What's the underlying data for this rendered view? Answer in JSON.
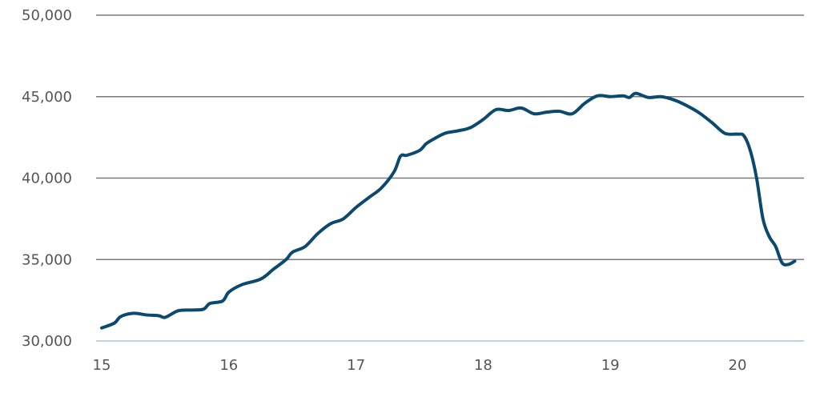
{
  "chart_data": {
    "type": "line",
    "title": "",
    "xlabel": "",
    "ylabel": "",
    "xlim": [
      15,
      20.5
    ],
    "ylim": [
      30000,
      50000
    ],
    "x_ticks": [
      15,
      16,
      17,
      18,
      19,
      20
    ],
    "x_tick_labels": [
      "15",
      "16",
      "17",
      "18",
      "19",
      "20"
    ],
    "y_ticks": [
      30000,
      35000,
      40000,
      45000,
      50000
    ],
    "y_tick_labels": [
      "30,000",
      "35,000",
      "40,000",
      "45,000",
      "50,000"
    ],
    "grid": "horizontal",
    "legend": "none",
    "colors": {
      "line": "#0b4a6e",
      "grid": "#7a7a7a",
      "baseline": "#a9c4dd",
      "text": "#555555"
    },
    "series": [
      {
        "x": [
          15.0,
          15.1,
          15.15,
          15.25,
          15.35,
          15.45,
          15.5,
          15.6,
          15.7,
          15.8,
          15.85,
          15.95,
          16.0,
          16.1,
          16.25,
          16.35,
          16.45,
          16.5,
          16.6,
          16.7,
          16.8,
          16.9,
          17.0,
          17.1,
          17.2,
          17.3,
          17.35,
          17.4,
          17.5,
          17.55,
          17.6,
          17.7,
          17.8,
          17.9,
          18.0,
          18.1,
          18.2,
          18.3,
          18.4,
          18.5,
          18.6,
          18.7,
          18.8,
          18.9,
          19.0,
          19.1,
          19.15,
          19.2,
          19.3,
          19.4,
          19.5,
          19.6,
          19.7,
          19.8,
          19.9,
          20.0,
          20.05,
          20.1,
          20.15,
          20.2,
          20.25,
          20.3,
          20.35,
          20.4,
          20.45
        ],
        "y": [
          30800,
          31100,
          31500,
          31700,
          31600,
          31550,
          31450,
          31850,
          31900,
          31950,
          32300,
          32450,
          33000,
          33450,
          33800,
          34400,
          35000,
          35450,
          35800,
          36600,
          37200,
          37500,
          38200,
          38800,
          39400,
          40400,
          41350,
          41400,
          41700,
          42100,
          42350,
          42750,
          42900,
          43100,
          43600,
          44200,
          44150,
          44300,
          43950,
          44050,
          44100,
          43950,
          44600,
          45050,
          45000,
          45050,
          44950,
          45200,
          44950,
          45000,
          44800,
          44450,
          44000,
          43400,
          42750,
          42700,
          42600,
          41700,
          40000,
          37500,
          36400,
          35800,
          34800,
          34700,
          34900
        ]
      }
    ]
  }
}
